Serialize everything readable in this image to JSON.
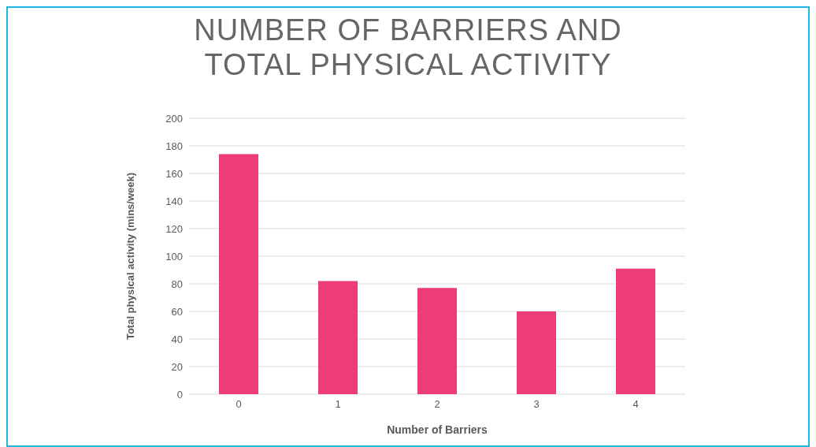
{
  "chart_data": {
    "type": "bar",
    "title": "NUMBER OF BARRIERS AND TOTAL PHYSICAL ACTIVITY",
    "xlabel": "Number of Barriers",
    "ylabel": "Total physical activity (mins/week)",
    "categories": [
      "0",
      "1",
      "2",
      "3",
      "4"
    ],
    "values": [
      174,
      82,
      77,
      60,
      91
    ],
    "color": "#ec3d7a",
    "ylim": [
      0,
      200
    ],
    "yticks": [
      0,
      20,
      40,
      60,
      80,
      100,
      120,
      140,
      160,
      180,
      200
    ],
    "grid": "y"
  }
}
